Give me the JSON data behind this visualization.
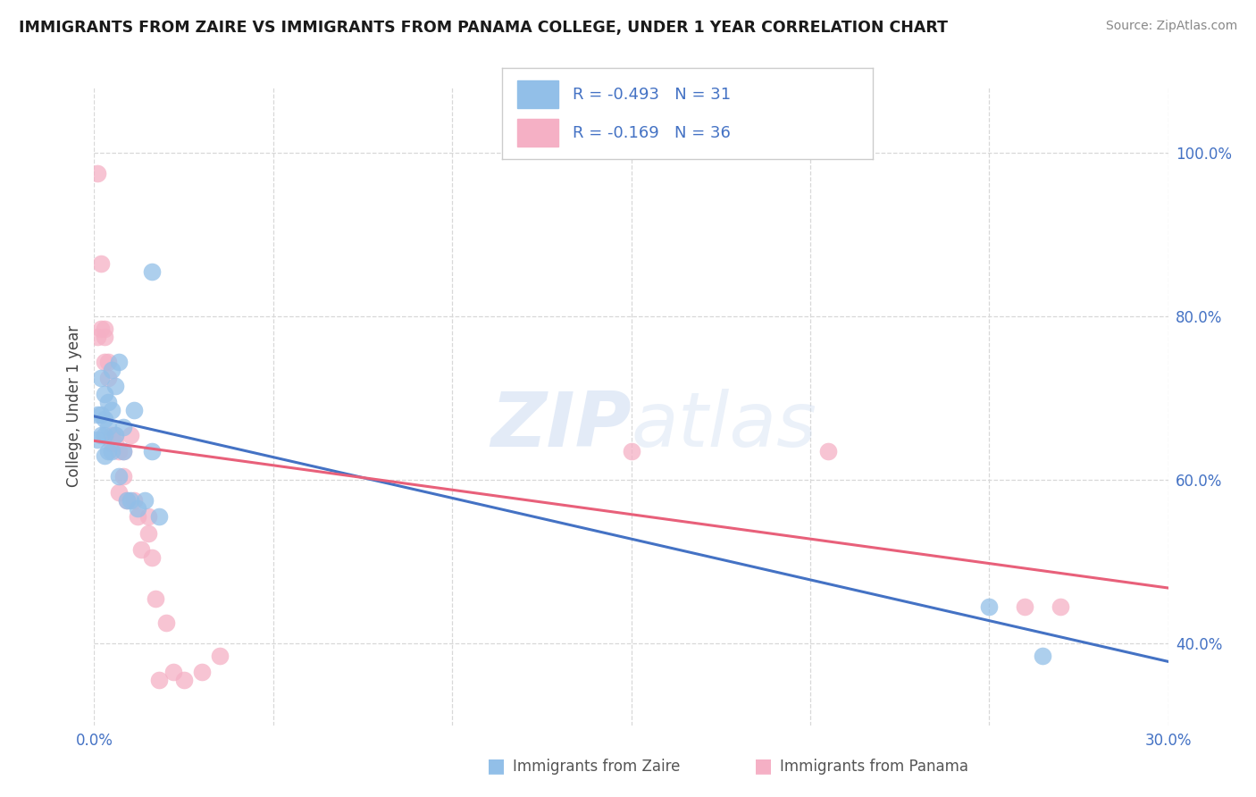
{
  "title": "IMMIGRANTS FROM ZAIRE VS IMMIGRANTS FROM PANAMA COLLEGE, UNDER 1 YEAR CORRELATION CHART",
  "source": "Source: ZipAtlas.com",
  "ylabel": "College, Under 1 year",
  "xlim": [
    0.0,
    0.3
  ],
  "ylim": [
    0.3,
    1.08
  ],
  "xticks": [
    0.0,
    0.05,
    0.1,
    0.15,
    0.2,
    0.25,
    0.3
  ],
  "xtick_labels": [
    "0.0%",
    "",
    "",
    "",
    "",
    "",
    "30.0%"
  ],
  "ytick_vals": [
    0.4,
    0.6,
    0.8,
    1.0
  ],
  "ytick_labels": [
    "40.0%",
    "60.0%",
    "80.0%",
    "100.0%"
  ],
  "legend_r_zaire": "R = -0.493",
  "legend_n_zaire": "N = 31",
  "legend_r_panama": "R = -0.169",
  "legend_n_panama": "N = 36",
  "zaire_color": "#92bfe8",
  "panama_color": "#f5b0c5",
  "zaire_line_color": "#4472c4",
  "panama_line_color": "#e8607a",
  "watermark_zip": "ZIP",
  "watermark_atlas": "atlas",
  "bg_color": "#ffffff",
  "grid_color": "#d8d8d8",
  "blue_label_color": "#4472c4",
  "title_color": "#1a1a1a",
  "source_color": "#888888",
  "zaire_x": [
    0.001,
    0.001,
    0.002,
    0.002,
    0.002,
    0.003,
    0.003,
    0.003,
    0.003,
    0.004,
    0.004,
    0.004,
    0.005,
    0.005,
    0.005,
    0.006,
    0.006,
    0.007,
    0.007,
    0.008,
    0.008,
    0.009,
    0.01,
    0.011,
    0.012,
    0.014,
    0.016,
    0.016,
    0.018,
    0.25,
    0.265
  ],
  "zaire_y": [
    0.68,
    0.65,
    0.725,
    0.68,
    0.655,
    0.705,
    0.675,
    0.655,
    0.63,
    0.695,
    0.665,
    0.635,
    0.735,
    0.685,
    0.635,
    0.715,
    0.655,
    0.745,
    0.605,
    0.665,
    0.635,
    0.575,
    0.575,
    0.685,
    0.565,
    0.575,
    0.635,
    0.855,
    0.555,
    0.445,
    0.385
  ],
  "panama_x": [
    0.001,
    0.001,
    0.002,
    0.002,
    0.003,
    0.003,
    0.003,
    0.004,
    0.004,
    0.005,
    0.005,
    0.006,
    0.006,
    0.007,
    0.007,
    0.008,
    0.008,
    0.009,
    0.01,
    0.011,
    0.012,
    0.013,
    0.015,
    0.015,
    0.016,
    0.017,
    0.018,
    0.02,
    0.022,
    0.025,
    0.03,
    0.035,
    0.15,
    0.205,
    0.26,
    0.27
  ],
  "panama_y": [
    0.975,
    0.775,
    0.865,
    0.785,
    0.785,
    0.775,
    0.745,
    0.745,
    0.725,
    0.655,
    0.645,
    0.655,
    0.645,
    0.635,
    0.585,
    0.635,
    0.605,
    0.575,
    0.655,
    0.575,
    0.555,
    0.515,
    0.555,
    0.535,
    0.505,
    0.455,
    0.355,
    0.425,
    0.365,
    0.355,
    0.365,
    0.385,
    0.635,
    0.635,
    0.445,
    0.445
  ],
  "zaire_line_x0": 0.0,
  "zaire_line_y0": 0.678,
  "zaire_line_x1": 0.3,
  "zaire_line_y1": 0.378,
  "panama_line_x0": 0.0,
  "panama_line_y0": 0.648,
  "panama_line_x1": 0.3,
  "panama_line_y1": 0.468
}
